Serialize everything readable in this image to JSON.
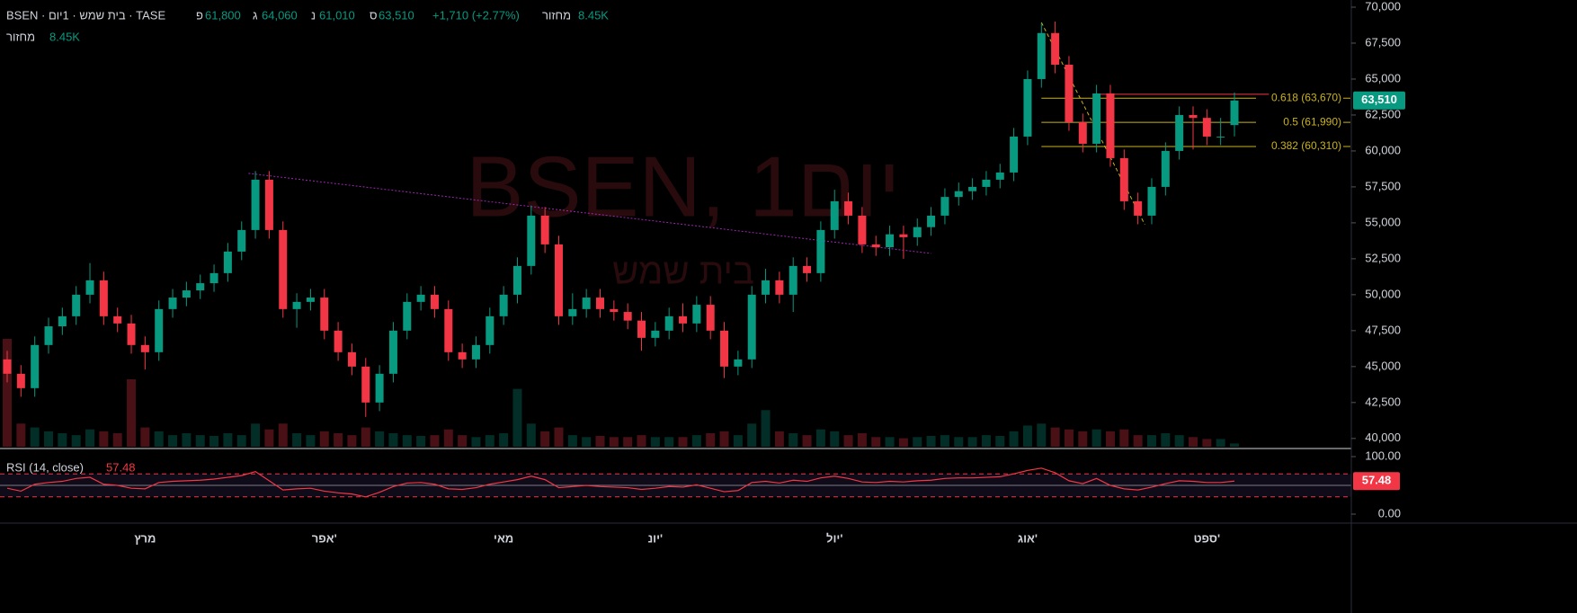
{
  "header": {
    "symbol": "BSEN · בית שמש · 1יום · TASE",
    "open_label": "פ",
    "open": "61,800",
    "high_label": "ג",
    "high": "64,060",
    "low_label": "נ",
    "low": "61,010",
    "close_label": "ס",
    "close": "63,510",
    "change": "+1,710 (+2.77%)",
    "volume_label": "מחזור",
    "volume": "8.45K"
  },
  "chart_data": {
    "type": "candlestick",
    "categories": [
      null,
      null,
      null,
      null,
      null,
      null,
      null,
      null,
      null,
      null,
      "מרץ",
      null,
      null,
      null,
      null,
      null,
      null,
      null,
      null,
      null,
      null,
      null,
      null,
      "אפר'",
      null,
      null,
      null,
      null,
      null,
      null,
      null,
      null,
      null,
      null,
      null,
      null,
      "מאי",
      null,
      null,
      null,
      null,
      null,
      null,
      null,
      null,
      null,
      null,
      "יונ'",
      null,
      null,
      null,
      null,
      null,
      null,
      null,
      null,
      null,
      null,
      null,
      null,
      "יול'",
      null,
      null,
      null,
      null,
      null,
      null,
      null,
      null,
      null,
      null,
      null,
      null,
      null,
      "אוג'",
      null,
      null,
      null,
      null,
      null,
      null,
      null,
      null,
      null,
      null,
      null,
      null,
      "ספט'",
      null,
      null
    ],
    "open": [
      45500,
      44500,
      43500,
      46500,
      47800,
      48500,
      50000,
      51000,
      48500,
      48000,
      46500,
      46000,
      49000,
      49800,
      50300,
      50800,
      51500,
      53000,
      54500,
      58000,
      54500,
      49000,
      49500,
      49800,
      47500,
      46000,
      45000,
      42500,
      44500,
      47500,
      49500,
      50000,
      49000,
      46000,
      45500,
      46500,
      48500,
      50000,
      52000,
      55500,
      53500,
      48500,
      49000,
      49800,
      49000,
      48800,
      48200,
      47000,
      47500,
      48500,
      48000,
      49300,
      47500,
      45000,
      45500,
      50000,
      51000,
      50000,
      52000,
      51500,
      54500,
      56500,
      55500,
      53500,
      53300,
      54200,
      54000,
      54700,
      55500,
      56800,
      57200,
      57500,
      58000,
      58500,
      61000,
      65000,
      68200,
      66000,
      62000,
      60500,
      64000,
      59500,
      56500,
      55500,
      57500,
      60000,
      62500,
      62300,
      61000,
      61800
    ],
    "high": [
      46100,
      45100,
      47100,
      48400,
      49100,
      50600,
      52200,
      51600,
      49100,
      48600,
      47100,
      49600,
      50400,
      50900,
      51400,
      52100,
      53600,
      55100,
      58600,
      58600,
      55100,
      50100,
      50400,
      50400,
      48100,
      46600,
      45600,
      45100,
      48100,
      50100,
      50600,
      50600,
      49600,
      46600,
      47100,
      49100,
      50600,
      52600,
      56200,
      56100,
      54100,
      50100,
      50400,
      50400,
      49600,
      49400,
      48800,
      48100,
      49100,
      49400,
      49900,
      49900,
      48100,
      46100,
      50600,
      51800,
      51600,
      52600,
      52600,
      55100,
      57300,
      57100,
      56100,
      54100,
      54800,
      54800,
      55300,
      56100,
      57400,
      57800,
      58100,
      58600,
      59100,
      61600,
      65600,
      68900,
      69000,
      66600,
      62600,
      64600,
      64600,
      60100,
      57100,
      58100,
      60600,
      63100,
      63100,
      62900,
      62300,
      64060
    ],
    "low": [
      43900,
      42900,
      42900,
      45900,
      47200,
      47900,
      49400,
      47900,
      47400,
      45900,
      44800,
      45400,
      48400,
      49200,
      49700,
      50200,
      50900,
      52400,
      53900,
      53900,
      48400,
      47700,
      48900,
      46900,
      45400,
      44400,
      41500,
      41900,
      43900,
      46900,
      48900,
      48400,
      45400,
      44900,
      44900,
      45900,
      47900,
      49400,
      51400,
      52900,
      47900,
      47900,
      48400,
      48400,
      48200,
      47600,
      46100,
      46400,
      46900,
      47400,
      47400,
      46900,
      44200,
      44400,
      44900,
      49400,
      49400,
      48800,
      50900,
      50900,
      53900,
      54900,
      52900,
      52700,
      52700,
      52500,
      53400,
      54100,
      54900,
      56200,
      56600,
      56900,
      57400,
      57900,
      60400,
      64400,
      65400,
      61400,
      59900,
      59900,
      58900,
      55900,
      54900,
      54900,
      56900,
      59400,
      60100,
      60400,
      60400,
      61010
    ],
    "close": [
      44500,
      43500,
      46500,
      47800,
      48500,
      50000,
      51000,
      48500,
      48000,
      46500,
      46000,
      49000,
      49800,
      50300,
      50800,
      51500,
      53000,
      54500,
      58000,
      54500,
      49000,
      49500,
      49800,
      47500,
      46000,
      45000,
      42500,
      44500,
      47500,
      49500,
      50000,
      49000,
      46000,
      45500,
      46500,
      48500,
      50000,
      52000,
      55500,
      53500,
      48500,
      49000,
      49800,
      49000,
      48800,
      48200,
      47000,
      47500,
      48500,
      48000,
      49300,
      47500,
      45000,
      45500,
      50000,
      51000,
      50000,
      52000,
      51500,
      54500,
      56500,
      55500,
      53500,
      53300,
      54200,
      54000,
      54700,
      55500,
      56800,
      57200,
      57500,
      58000,
      58500,
      61000,
      65000,
      68200,
      66000,
      62000,
      60500,
      64000,
      59500,
      56500,
      55500,
      57500,
      60000,
      62500,
      62300,
      61000,
      61000,
      63510
    ],
    "volume": [
      280000,
      60000,
      50000,
      40000,
      35000,
      30000,
      45000,
      40000,
      35000,
      175000,
      50000,
      40000,
      30000,
      35000,
      30000,
      28000,
      35000,
      30000,
      60000,
      45000,
      60000,
      35000,
      30000,
      40000,
      35000,
      30000,
      50000,
      40000,
      35000,
      30000,
      28000,
      30000,
      45000,
      30000,
      25000,
      30000,
      35000,
      150000,
      60000,
      40000,
      50000,
      30000,
      25000,
      28000,
      25000,
      25000,
      30000,
      25000,
      25000,
      25000,
      30000,
      35000,
      40000,
      30000,
      60000,
      95000,
      40000,
      35000,
      30000,
      45000,
      40000,
      30000,
      35000,
      25000,
      25000,
      22000,
      25000,
      28000,
      30000,
      25000,
      25000,
      30000,
      28000,
      40000,
      55000,
      60000,
      50000,
      45000,
      40000,
      45000,
      40000,
      45000,
      30000,
      30000,
      35000,
      30000,
      25000,
      20000,
      20000,
      8450
    ],
    "up_color": "#089981",
    "down_color": "#f23645",
    "ylim": [
      39300,
      70500
    ],
    "yticks": [
      {
        "value": 40000,
        "label": "40,000"
      },
      {
        "value": 42500,
        "label": "42,500"
      },
      {
        "value": 45000,
        "label": "45,000"
      },
      {
        "value": 47500,
        "label": "47,500"
      },
      {
        "value": 50000,
        "label": "50,000"
      },
      {
        "value": 52500,
        "label": "52,500"
      },
      {
        "value": 55000,
        "label": "55,000"
      },
      {
        "value": 57500,
        "label": "57,500"
      },
      {
        "value": 60000,
        "label": "60,000"
      },
      {
        "value": 62500,
        "label": "62,500"
      },
      {
        "value": 65000,
        "label": "65,000"
      },
      {
        "value": 67500,
        "label": "67,500"
      },
      {
        "value": 70000,
        "label": "70,000"
      }
    ],
    "last_price_label": "63,510",
    "fib_levels": [
      {
        "value": 63670,
        "label": "0.618 (63,670)"
      },
      {
        "value": 61990,
        "label": "0.5 (61,990)"
      },
      {
        "value": 60310,
        "label": "0.382 (60,310)"
      }
    ],
    "fib_color": "#c9b21a",
    "fib_line": {
      "x": [
        75,
        82.5
      ],
      "y": [
        68940,
        54880
      ]
    },
    "trendline": {
      "x": [
        17.5,
        67
      ],
      "y": [
        58440,
        52870
      ],
      "color": "#9c27b0"
    },
    "resistance": {
      "x": [
        79,
        91.5
      ],
      "y": 63940,
      "color": "#f23645"
    },
    "watermark": {
      "title": "BSEN, 1יום",
      "subtitle": "בית שמש"
    },
    "rsi": {
      "title": "RSI (14, close)",
      "value_label": "57.48",
      "color": "#f23645",
      "values": [
        45,
        40,
        52,
        55,
        57,
        62,
        64,
        52,
        50,
        45,
        44,
        55,
        57,
        58,
        59,
        61,
        64,
        67,
        74,
        58,
        42,
        44,
        45,
        40,
        37,
        35,
        30,
        38,
        48,
        54,
        55,
        52,
        44,
        43,
        46,
        52,
        56,
        60,
        66,
        60,
        46,
        48,
        50,
        48,
        47,
        46,
        43,
        45,
        48,
        47,
        51,
        45,
        39,
        41,
        55,
        57,
        54,
        59,
        57,
        63,
        66,
        62,
        56,
        55,
        57,
        56,
        58,
        59,
        62,
        63,
        63,
        64,
        65,
        70,
        76,
        80,
        72,
        58,
        53,
        62,
        50,
        44,
        42,
        47,
        53,
        58,
        57,
        55,
        55,
        57.48
      ],
      "ylim": [
        -15.6,
        112.5
      ],
      "yticks": [
        {
          "value": 0,
          "label": "0.00"
        },
        {
          "value": 100,
          "label": "100.00"
        }
      ],
      "levels": [
        30,
        50,
        70
      ]
    }
  }
}
